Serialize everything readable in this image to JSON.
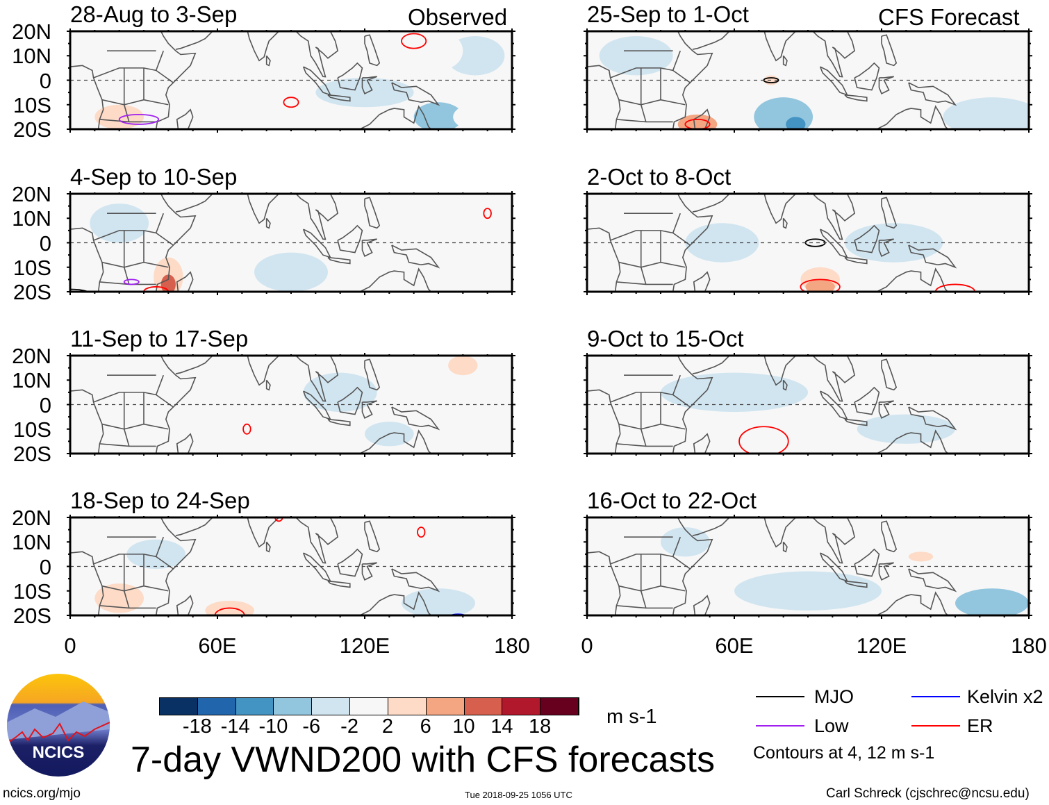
{
  "title": "7-day VWND200 with CFS forecasts",
  "observed_label": "Observed",
  "forecast_label": "CFS Forecast",
  "lat_labels": [
    "20N",
    "10N",
    "0",
    "10S",
    "20S"
  ],
  "lon_labels": [
    "0",
    "60E",
    "120E",
    "180"
  ],
  "units": "m s-1",
  "footer": {
    "left": "ncics.org/mjo",
    "center": "Tue 2018-09-25 1056 UTC",
    "right": "Carl Schreck (cjschrec@ncsu.edu)"
  },
  "logo_text": "NCICS",
  "colorbar": {
    "labels": [
      "-18",
      "-14",
      "-10",
      "-6",
      "-2",
      "2",
      "6",
      "10",
      "14",
      "18"
    ],
    "colors": [
      "#0a3163",
      "#2166ac",
      "#4393c3",
      "#92c5de",
      "#d1e5f0",
      "#f7f7f7",
      "#fddbc7",
      "#f4a582",
      "#d6604d",
      "#b2182b",
      "#67001f"
    ]
  },
  "legend": {
    "items": [
      {
        "label": "MJO",
        "color": "#000000"
      },
      {
        "label": "Low",
        "color": "#a020f0"
      },
      {
        "label": "Kelvin x2",
        "color": "#0000ff"
      },
      {
        "label": "ER",
        "color": "#ff0000"
      }
    ],
    "contours_note": "Contours at 4, 12 m s-1"
  },
  "chart_data": {
    "type": "heatmap",
    "lon_range": [
      0,
      180
    ],
    "lat_range": [
      -20,
      20
    ],
    "panels": [
      {
        "title": "28-Aug to 3-Sep",
        "kind": "observed",
        "anomalies": [
          [
            150,
            -15,
            10,
            6,
            -6
          ],
          [
            120,
            -5,
            20,
            6,
            -2
          ],
          [
            165,
            10,
            12,
            8,
            -2
          ],
          [
            150,
            12,
            10,
            8,
            2
          ],
          [
            168,
            -15,
            12,
            6,
            2
          ],
          [
            75,
            -10,
            15,
            5,
            2
          ],
          [
            20,
            -15,
            10,
            5,
            6
          ]
        ],
        "contours": [
          [
            140,
            16,
            5,
            3,
            "ER"
          ],
          [
            90,
            -9,
            3,
            2,
            "ER"
          ],
          [
            28,
            -16,
            8,
            2,
            "Low"
          ]
        ]
      },
      {
        "title": "4-Sep to 10-Sep",
        "kind": "observed",
        "anomalies": [
          [
            80,
            8,
            25,
            8,
            2
          ],
          [
            120,
            15,
            10,
            8,
            2
          ],
          [
            170,
            12,
            8,
            6,
            2
          ],
          [
            90,
            -12,
            15,
            8,
            -2
          ],
          [
            20,
            8,
            12,
            8,
            -2
          ],
          [
            40,
            -14,
            6,
            8,
            6
          ],
          [
            40,
            -17,
            3,
            4,
            14
          ]
        ],
        "contours": [
          [
            170,
            12,
            1.5,
            2,
            "ER"
          ],
          [
            25,
            -16,
            3,
            1,
            "Low"
          ],
          [
            0,
            -22,
            10,
            3,
            "MJO"
          ],
          [
            35,
            -20,
            5,
            2,
            "ER"
          ]
        ]
      },
      {
        "title": "11-Sep to 17-Sep",
        "kind": "observed",
        "anomalies": [
          [
            75,
            -5,
            30,
            10,
            2
          ],
          [
            20,
            -15,
            15,
            5,
            2
          ],
          [
            140,
            0,
            15,
            6,
            2
          ],
          [
            175,
            -5,
            8,
            10,
            2
          ],
          [
            110,
            5,
            15,
            8,
            -2
          ],
          [
            130,
            -12,
            10,
            5,
            -2
          ],
          [
            160,
            16,
            6,
            4,
            6
          ]
        ],
        "contours": [
          [
            72,
            -10,
            1.5,
            2,
            "ER"
          ]
        ]
      },
      {
        "title": "18-Sep to 24-Sep",
        "kind": "observed",
        "anomalies": [
          [
            15,
            -10,
            15,
            10,
            2
          ],
          [
            120,
            10,
            20,
            8,
            2
          ],
          [
            160,
            5,
            12,
            6,
            2
          ],
          [
            35,
            5,
            12,
            6,
            -2
          ],
          [
            150,
            -15,
            15,
            6,
            -2
          ],
          [
            20,
            -13,
            10,
            6,
            6
          ],
          [
            65,
            -18,
            10,
            4,
            6
          ]
        ],
        "contours": [
          [
            85,
            20,
            1.5,
            1.5,
            "ER"
          ],
          [
            143,
            14,
            1.5,
            2,
            "ER"
          ],
          [
            65,
            -20,
            6,
            3,
            "ER"
          ],
          [
            158,
            -21,
            4,
            1.5,
            "Kelvin x2"
          ]
        ]
      },
      {
        "title": "25-Sep to 1-Oct",
        "kind": "forecast",
        "anomalies": [
          [
            75,
            -5,
            30,
            10,
            2
          ],
          [
            175,
            0,
            6,
            8,
            2
          ],
          [
            20,
            10,
            15,
            8,
            -2
          ],
          [
            165,
            -15,
            20,
            8,
            -2
          ],
          [
            80,
            -15,
            12,
            8,
            -6
          ],
          [
            85,
            -18,
            4,
            3,
            -10
          ],
          [
            75,
            0,
            3,
            2,
            6
          ],
          [
            45,
            -18,
            8,
            4,
            10
          ]
        ],
        "contours": [
          [
            75,
            0,
            3,
            1,
            "MJO"
          ],
          [
            45,
            -18,
            5,
            2,
            "ER"
          ]
        ]
      },
      {
        "title": "2-Oct to 8-Oct",
        "kind": "forecast",
        "anomalies": [
          [
            95,
            -13,
            18,
            8,
            2
          ],
          [
            20,
            -15,
            8,
            5,
            2
          ],
          [
            150,
            -18,
            10,
            4,
            2
          ],
          [
            55,
            0,
            15,
            8,
            -2
          ],
          [
            125,
            0,
            20,
            8,
            -2
          ],
          [
            95,
            -15,
            8,
            5,
            6
          ],
          [
            95,
            -18,
            6,
            3,
            10
          ]
        ],
        "contours": [
          [
            93,
            0,
            4,
            1.5,
            "MJO"
          ],
          [
            95,
            -18,
            8,
            3,
            "ER"
          ],
          [
            150,
            -20,
            8,
            3,
            "ER"
          ]
        ]
      },
      {
        "title": "9-Oct to 15-Oct",
        "kind": "forecast",
        "anomalies": [
          [
            150,
            10,
            30,
            8,
            2
          ],
          [
            80,
            -18,
            25,
            6,
            2
          ],
          [
            60,
            5,
            30,
            8,
            -2
          ],
          [
            130,
            -10,
            20,
            6,
            -2
          ]
        ],
        "contours": [
          [
            72,
            -15,
            10,
            6,
            "ER"
          ]
        ]
      },
      {
        "title": "16-Oct to 22-Oct",
        "kind": "forecast",
        "anomalies": [
          [
            140,
            0,
            35,
            12,
            2
          ],
          [
            40,
            -15,
            10,
            5,
            2
          ],
          [
            90,
            -10,
            30,
            8,
            -2
          ],
          [
            40,
            10,
            10,
            6,
            -2
          ],
          [
            165,
            -15,
            15,
            6,
            -6
          ],
          [
            136,
            4,
            5,
            2,
            6
          ]
        ],
        "contours": []
      }
    ]
  }
}
